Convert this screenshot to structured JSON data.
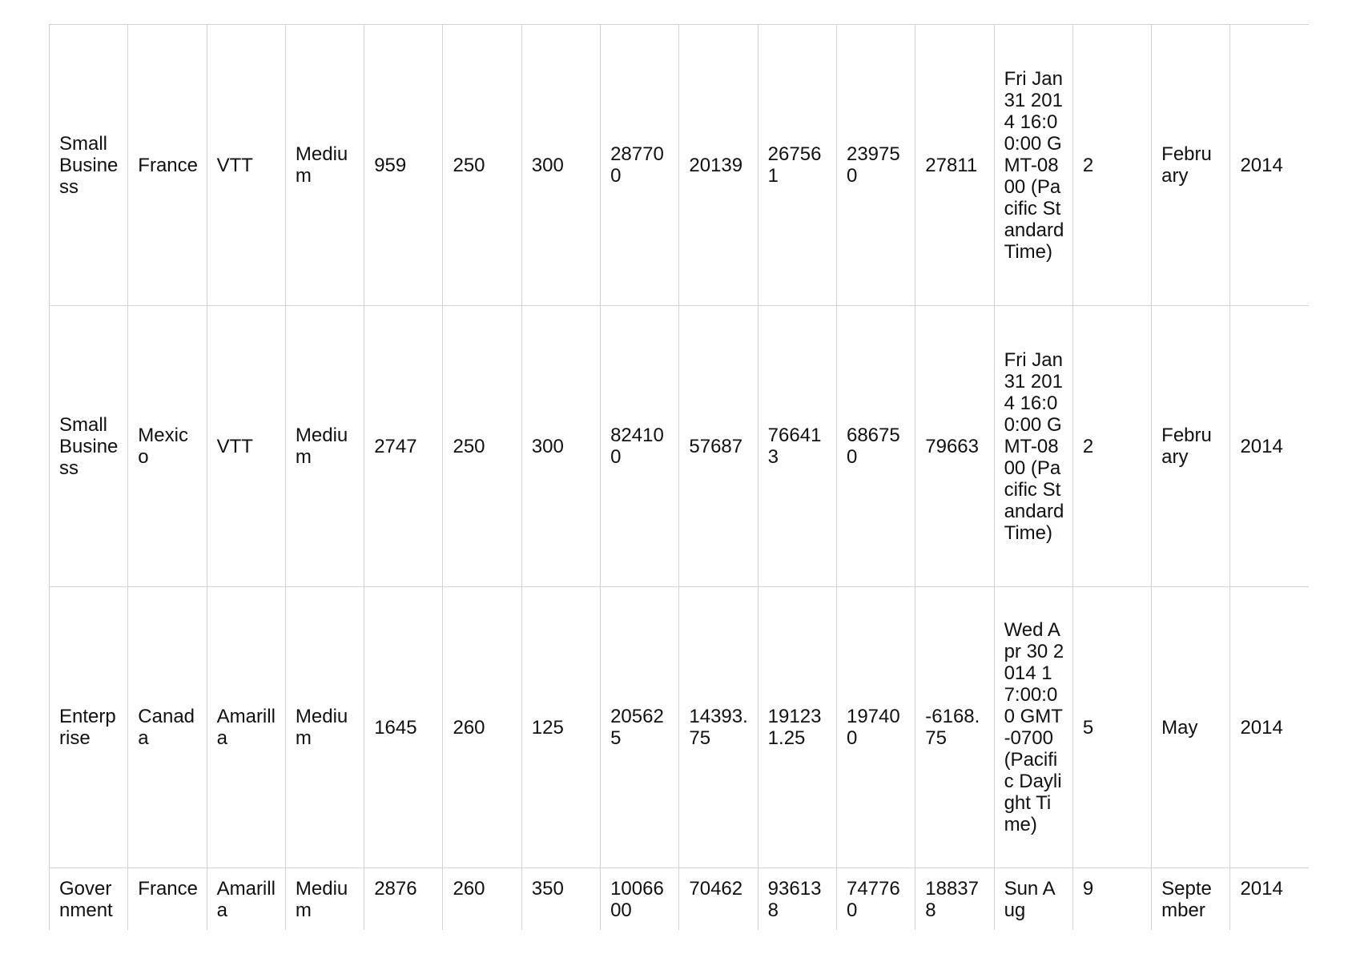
{
  "table": {
    "rows": [
      [
        "Small Business",
        "France",
        "VTT",
        "Medium",
        "959",
        "250",
        "300",
        "287700",
        "20139",
        "267561",
        "239750",
        "27811",
        "Fri Jan 31 2014 16:00:00 GMT-0800 (Pacific Standard Time)",
        "2",
        "February",
        "2014"
      ],
      [
        "Small Business",
        "Mexico",
        "VTT",
        "Medium",
        "2747",
        "250",
        "300",
        "824100",
        "57687",
        "766413",
        "686750",
        "79663",
        "Fri Jan 31 2014 16:00:00 GMT-0800 (Pacific Standard Time)",
        "2",
        "February",
        "2014"
      ],
      [
        "Enterprise",
        "Canada",
        "Amarilla",
        "Medium",
        "1645",
        "260",
        "125",
        "205625",
        "14393.75",
        "191231.25",
        "197400",
        "-6168.75",
        "Wed Apr 30 2014 17:00:00 GMT-0700 (Pacific Daylight Time)",
        "5",
        "May",
        "2014"
      ],
      [
        "Government",
        "France",
        "Amarilla",
        "Medium",
        "2876",
        "260",
        "350",
        "1006600",
        "70462",
        "936138",
        "747760",
        "188378",
        "Sun Aug",
        "9",
        "September",
        "2014"
      ]
    ]
  }
}
